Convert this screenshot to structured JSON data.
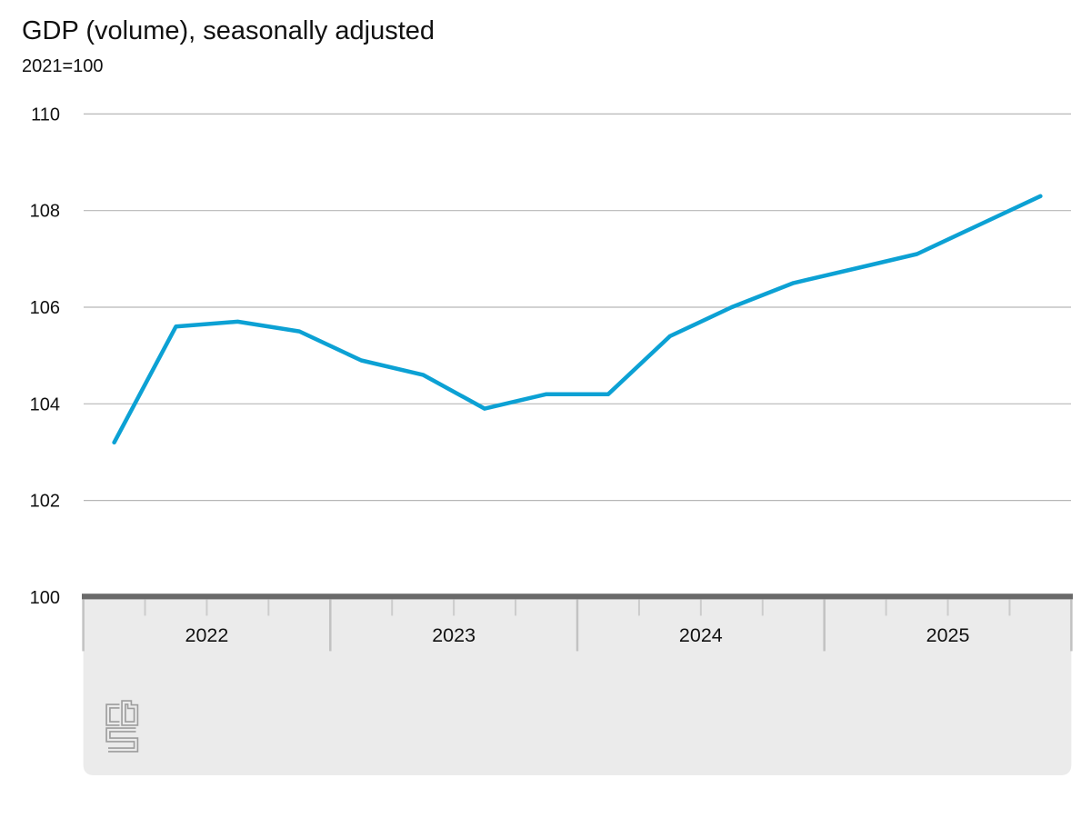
{
  "chart": {
    "title": "GDP (volume), seasonally adjusted",
    "subtitle": "2021=100"
  },
  "chart_data": {
    "type": "line",
    "title": "GDP (volume), seasonally adjusted",
    "subtitle": "2021=100",
    "x": [
      "2022 Q1",
      "2022 Q2",
      "2022 Q3",
      "2022 Q4",
      "2023 Q1",
      "2023 Q2",
      "2023 Q3",
      "2023 Q4",
      "2024 Q1",
      "2024 Q2",
      "2024 Q3",
      "2024 Q4",
      "2025 Q1",
      "2025 Q2",
      "2025 Q3",
      "2025 Q4"
    ],
    "values": [
      103.2,
      105.6,
      105.7,
      105.5,
      104.9,
      104.6,
      103.9,
      104.2,
      104.2,
      105.4,
      106.0,
      106.5,
      106.8,
      107.1,
      107.7,
      108.3
    ],
    "year_labels": [
      "2022",
      "2023",
      "2024",
      "2025"
    ],
    "quarters_per_year": 4,
    "y_ticks": [
      100,
      102,
      104,
      106,
      108,
      110
    ],
    "ylim": [
      100,
      110
    ],
    "grid": true,
    "legend_position": "none",
    "source_logo": "cbs-logo",
    "colors": {
      "line": "#0ca1d4",
      "gridline": "#b7b7b7",
      "axis_bar": "#6a6a6a",
      "footer_panel": "#ebebeb",
      "tick": "#c6c6c6",
      "text": "#111111",
      "logo": "#9d9d9d"
    }
  }
}
